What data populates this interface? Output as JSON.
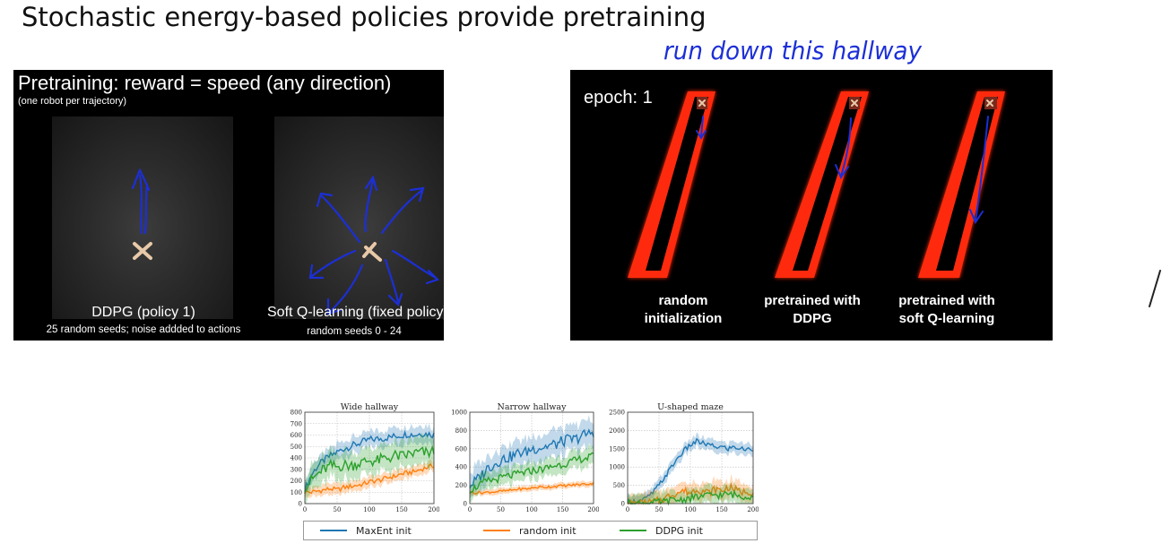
{
  "slide": {
    "title": "Stochastic energy-based policies provide pretraining",
    "handwriting_top": "run down this hallway"
  },
  "left_video": {
    "title": "Pretraining: reward = speed (any direction)",
    "subtitle": "(one robot per trajectory)",
    "caption_left_main": "DDPG (policy 1)",
    "caption_left_sub": "25 random seeds; noise addded to actions",
    "caption_right_main": "Soft Q-learning (fixed policy)",
    "caption_right_sub": "random seeds 0 - 24"
  },
  "right_video": {
    "epoch_label": "epoch: 1",
    "labels": [
      {
        "line1": "random",
        "line2": "initialization"
      },
      {
        "line1": "pretrained with",
        "line2": "DDPG"
      },
      {
        "line1": "pretrained with",
        "line2": "soft Q-learning"
      }
    ]
  },
  "colors": {
    "maxent": "#1f77b4",
    "random": "#ff7f0e",
    "ddpg": "#2ca02c",
    "hallway": "#ff2a10",
    "ink": "#1c2fd6"
  },
  "legend": [
    {
      "name": "MaxEnt init",
      "color": "#1f77b4"
    },
    {
      "name": "random init",
      "color": "#ff7f0e"
    },
    {
      "name": "DDPG init",
      "color": "#2ca02c"
    }
  ],
  "chart_data": [
    {
      "type": "line",
      "title": "Wide hallway",
      "xlim": [
        0,
        200
      ],
      "ylim": [
        0,
        800
      ],
      "xticks": [
        0,
        50,
        100,
        150,
        200
      ],
      "yticks": [
        0,
        100,
        200,
        300,
        400,
        500,
        600,
        700,
        800
      ],
      "grid": true,
      "series": [
        {
          "name": "MaxEnt init",
          "x": [
            0,
            10,
            20,
            30,
            40,
            50,
            60,
            70,
            80,
            90,
            100,
            110,
            120,
            130,
            140,
            150,
            160,
            170,
            180,
            190,
            200
          ],
          "y": [
            120,
            250,
            330,
            380,
            420,
            450,
            480,
            500,
            520,
            540,
            560,
            565,
            570,
            580,
            590,
            600,
            610,
            600,
            615,
            610,
            605
          ],
          "band": 90
        },
        {
          "name": "random init",
          "x": [
            0,
            10,
            20,
            30,
            40,
            50,
            60,
            70,
            80,
            90,
            100,
            110,
            120,
            130,
            140,
            150,
            160,
            170,
            180,
            190,
            200
          ],
          "y": [
            100,
            100,
            110,
            120,
            130,
            120,
            140,
            150,
            160,
            170,
            190,
            200,
            210,
            230,
            240,
            260,
            270,
            280,
            300,
            320,
            330
          ],
          "band": 60
        },
        {
          "name": "DDPG init",
          "x": [
            0,
            10,
            20,
            30,
            40,
            50,
            60,
            70,
            80,
            90,
            100,
            110,
            120,
            130,
            140,
            150,
            160,
            170,
            180,
            190,
            200
          ],
          "y": [
            150,
            200,
            260,
            300,
            330,
            320,
            340,
            330,
            350,
            360,
            380,
            370,
            390,
            400,
            420,
            410,
            430,
            440,
            450,
            440,
            460
          ],
          "band": 150
        }
      ]
    },
    {
      "type": "line",
      "title": "Narrow hallway",
      "xlim": [
        0,
        200
      ],
      "ylim": [
        0,
        1000
      ],
      "xticks": [
        0,
        50,
        100,
        150,
        200
      ],
      "yticks": [
        0,
        200,
        400,
        600,
        800,
        1000
      ],
      "grid": true,
      "series": [
        {
          "name": "MaxEnt init",
          "x": [
            0,
            10,
            20,
            30,
            40,
            50,
            60,
            70,
            80,
            90,
            100,
            110,
            120,
            130,
            140,
            150,
            160,
            170,
            180,
            190,
            200
          ],
          "y": [
            200,
            250,
            320,
            400,
            430,
            480,
            500,
            520,
            560,
            560,
            600,
            610,
            620,
            640,
            650,
            680,
            700,
            700,
            740,
            760,
            790
          ],
          "band": 180
        },
        {
          "name": "random init",
          "x": [
            0,
            10,
            20,
            30,
            40,
            50,
            60,
            70,
            80,
            90,
            100,
            110,
            120,
            130,
            140,
            150,
            160,
            170,
            180,
            190,
            200
          ],
          "y": [
            120,
            120,
            120,
            125,
            130,
            135,
            140,
            150,
            160,
            160,
            170,
            180,
            180,
            185,
            190,
            195,
            200,
            205,
            210,
            215,
            220
          ],
          "band": 40
        },
        {
          "name": "DDPG init",
          "x": [
            0,
            10,
            20,
            30,
            40,
            50,
            60,
            70,
            80,
            90,
            100,
            110,
            120,
            130,
            140,
            150,
            160,
            170,
            180,
            190,
            200
          ],
          "y": [
            150,
            180,
            220,
            250,
            260,
            280,
            300,
            310,
            330,
            340,
            360,
            370,
            380,
            400,
            420,
            430,
            450,
            470,
            490,
            500,
            520
          ],
          "band": 120
        }
      ]
    },
    {
      "type": "line",
      "title": "U-shaped maze",
      "xlim": [
        0,
        200
      ],
      "ylim": [
        0,
        2500
      ],
      "xticks": [
        0,
        50,
        100,
        150,
        200
      ],
      "yticks": [
        0,
        500,
        1000,
        1500,
        2000,
        2500
      ],
      "grid": true,
      "series": [
        {
          "name": "MaxEnt init",
          "x": [
            0,
            10,
            20,
            30,
            40,
            50,
            60,
            70,
            80,
            90,
            100,
            110,
            120,
            130,
            140,
            150,
            160,
            170,
            180,
            190,
            200
          ],
          "y": [
            50,
            60,
            80,
            150,
            300,
            500,
            750,
            1000,
            1250,
            1450,
            1600,
            1700,
            1650,
            1600,
            1550,
            1550,
            1500,
            1550,
            1500,
            1480,
            1500
          ],
          "band": 200
        },
        {
          "name": "random init",
          "x": [
            0,
            10,
            20,
            30,
            40,
            50,
            60,
            70,
            80,
            90,
            100,
            110,
            120,
            130,
            140,
            150,
            160,
            170,
            180,
            190,
            200
          ],
          "y": [
            0,
            0,
            0,
            20,
            50,
            80,
            150,
            250,
            300,
            350,
            300,
            400,
            350,
            300,
            400,
            350,
            450,
            400,
            300,
            350,
            300
          ],
          "band": 300
        },
        {
          "name": "DDPG init",
          "x": [
            0,
            10,
            20,
            30,
            40,
            50,
            60,
            70,
            80,
            90,
            100,
            110,
            120,
            130,
            140,
            150,
            160,
            170,
            180,
            190,
            200
          ],
          "y": [
            0,
            0,
            0,
            10,
            20,
            30,
            50,
            80,
            100,
            120,
            150,
            180,
            200,
            220,
            250,
            220,
            260,
            240,
            200,
            220,
            200
          ],
          "band": 300
        }
      ]
    }
  ]
}
